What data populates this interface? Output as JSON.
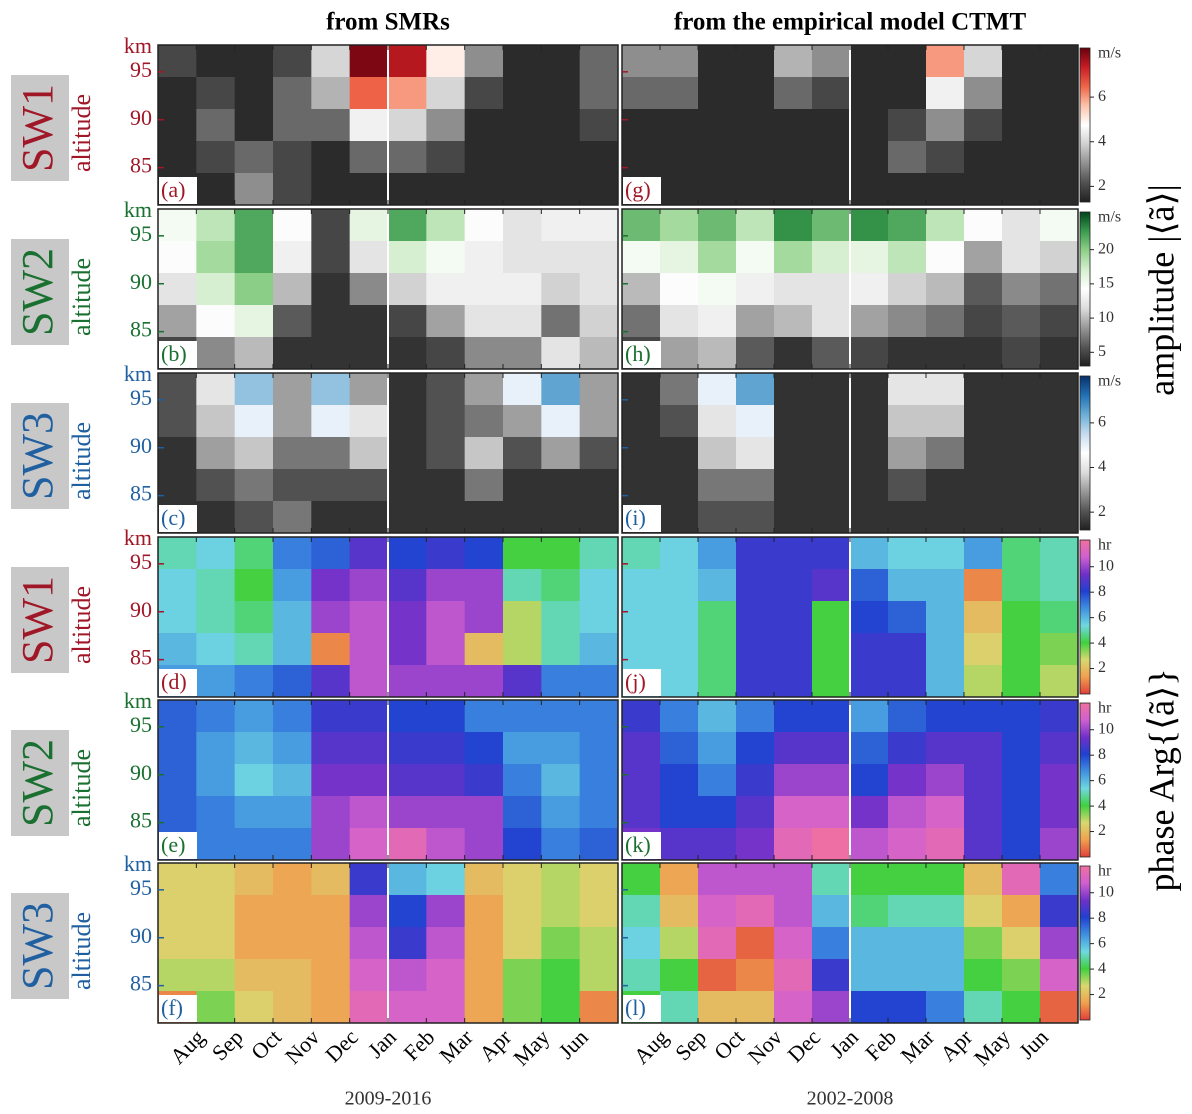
{
  "figure": {
    "left_title": "from SMRs",
    "right_title": "from the empirical model CTMT",
    "left_xlabel": "2009-2016",
    "right_xlabel": "2002-2008",
    "months": [
      "Aug",
      "Sep",
      "Oct",
      "Nov",
      "Dec",
      "Jan",
      "Feb",
      "Mar",
      "Apr",
      "May",
      "Jun"
    ],
    "amplitude_label": "amplitude |⟨ã⟩|",
    "phase_label": "phase Arg{⟨ã⟩}"
  },
  "chart_data": [
    {
      "type": "heatmap",
      "panel_label": "(a)",
      "row_label": "SW1",
      "ylabel": "altitude",
      "y_unit": "km",
      "label_color": "#a01828",
      "ylim": [
        81.1,
        97.8
      ],
      "yticks": [
        85,
        90,
        95
      ],
      "z": [
        [
          2,
          1.5,
          1.5,
          2,
          4,
          8,
          7.5,
          5,
          3,
          1.5,
          1.5,
          2.5
        ],
        [
          1.5,
          2,
          1.5,
          2.5,
          3.5,
          6.5,
          6,
          4,
          2,
          1.5,
          1.5,
          2.5
        ],
        [
          1.5,
          2.5,
          1.5,
          2.5,
          2.5,
          4.5,
          4,
          3,
          1.5,
          1.5,
          1.5,
          2
        ],
        [
          1.5,
          2,
          2.5,
          2,
          1.5,
          2.5,
          2.5,
          2,
          1.5,
          1.5,
          1.5,
          1.5
        ],
        [
          1.5,
          1.5,
          3,
          2,
          1.5,
          1.5,
          1.5,
          1.5,
          1.5,
          1.5,
          1.5,
          1.5
        ]
      ]
    },
    {
      "type": "heatmap",
      "panel_label": "(b)",
      "row_label": "SW2",
      "ylabel": "altitude",
      "y_unit": "km",
      "label_color": "#1a7030",
      "ylim": [
        81.1,
        97.8
      ],
      "yticks": [
        85,
        90,
        95
      ],
      "z": [
        [
          15,
          18,
          22,
          14,
          5,
          16,
          22,
          18,
          14,
          12,
          13,
          13
        ],
        [
          14,
          19,
          22,
          13,
          5,
          12,
          17,
          15,
          13,
          12,
          12,
          12
        ],
        [
          12,
          17,
          20,
          10,
          4,
          8,
          11,
          13,
          13,
          13,
          11,
          12
        ],
        [
          9,
          14,
          16,
          6,
          4,
          4,
          5,
          9,
          12,
          12,
          7,
          11
        ],
        [
          5,
          8,
          10,
          4,
          4,
          4,
          4,
          5,
          8,
          8,
          12,
          10
        ]
      ]
    },
    {
      "type": "heatmap",
      "panel_label": "(c)",
      "row_label": "SW3",
      "ylabel": "altitude",
      "y_unit": "km",
      "label_color": "#2060a0",
      "ylim": [
        81.1,
        97.8
      ],
      "yticks": [
        85,
        90,
        95
      ],
      "z": [
        [
          2,
          4,
          6,
          3,
          6,
          3,
          1.5,
          2,
          3,
          5,
          6.5,
          3
        ],
        [
          2,
          3.5,
          5,
          3,
          5,
          4,
          1.5,
          2,
          2.5,
          3,
          5,
          3
        ],
        [
          1.5,
          3,
          3.5,
          2.5,
          2.5,
          3.5,
          1.5,
          2,
          3.5,
          2,
          3,
          2
        ],
        [
          1.5,
          2,
          2.5,
          2,
          2,
          2,
          1.5,
          1.5,
          2.5,
          1.5,
          1.5,
          1.5
        ],
        [
          1.5,
          1.5,
          2,
          2.5,
          1.5,
          1.5,
          1.5,
          1.5,
          1.5,
          1.5,
          1.5,
          1.5
        ]
      ]
    },
    {
      "type": "heatmap",
      "panel_label": "(d)",
      "row_label": "SW1",
      "ylabel": "altitude",
      "y_unit": "km",
      "label_color": "#a01828",
      "ylim": [
        81.1,
        97.8
      ],
      "yticks": [
        85,
        90,
        95
      ],
      "z": [
        [
          5,
          5.5,
          4.5,
          7,
          7.5,
          9,
          8,
          8.5,
          8,
          4,
          4,
          5
        ],
        [
          5.5,
          5,
          4,
          6.5,
          9.5,
          10,
          9,
          10,
          10,
          5,
          4.5,
          5.5
        ],
        [
          5.5,
          5,
          4.5,
          6,
          10,
          10.5,
          9.5,
          10.5,
          10,
          3,
          5,
          5.5
        ],
        [
          6,
          5.5,
          5,
          6,
          1,
          10.5,
          9.5,
          10.5,
          2,
          3,
          5,
          6
        ],
        [
          6.5,
          6.5,
          7,
          7.5,
          9,
          10.5,
          10,
          10,
          10,
          9,
          7,
          7
        ]
      ]
    },
    {
      "type": "heatmap",
      "panel_label": "(e)",
      "row_label": "SW2",
      "ylabel": "altitude",
      "y_unit": "km",
      "label_color": "#1a7030",
      "ylim": [
        81.1,
        97.8
      ],
      "yticks": [
        85,
        90,
        95
      ],
      "z": [
        [
          7.5,
          7,
          6.5,
          7,
          8.5,
          8.5,
          8,
          8,
          7,
          7,
          7,
          7
        ],
        [
          7.5,
          6.5,
          6,
          6.5,
          9,
          9,
          8.5,
          8.5,
          8,
          6.5,
          6.5,
          7
        ],
        [
          7.5,
          6.5,
          5.5,
          6,
          9.5,
          9.5,
          9,
          9,
          8.5,
          7,
          6,
          7
        ],
        [
          7.5,
          7,
          6.5,
          6.5,
          10,
          10.5,
          10,
          10,
          10,
          7.5,
          6.5,
          7
        ],
        [
          7.5,
          7,
          7,
          7,
          10,
          11,
          11.5,
          10.5,
          10,
          8,
          7,
          7.5
        ]
      ]
    },
    {
      "type": "heatmap",
      "panel_label": "(f)",
      "row_label": "SW3",
      "ylabel": "altitude",
      "y_unit": "km",
      "label_color": "#2060a0",
      "ylim": [
        81.1,
        97.8
      ],
      "yticks": [
        85,
        90,
        95
      ],
      "z": [
        [
          2.5,
          2.5,
          2,
          1.5,
          2,
          8.5,
          6,
          5.5,
          2,
          2.5,
          3,
          2.5
        ],
        [
          2.5,
          2.5,
          1.5,
          1.5,
          1.5,
          10,
          8,
          10,
          1.5,
          2.5,
          3,
          2.5
        ],
        [
          2.5,
          2.5,
          1.5,
          1.5,
          1.5,
          10.5,
          8.5,
          10.5,
          1.5,
          2.5,
          3.5,
          3
        ],
        [
          3,
          3,
          2,
          2,
          1.5,
          11,
          10.5,
          11,
          1.5,
          3.5,
          4,
          3
        ],
        [
          1,
          3.5,
          2.5,
          2,
          1.5,
          11.5,
          11,
          11,
          1.5,
          3.5,
          4,
          1
        ]
      ]
    },
    {
      "type": "heatmap",
      "panel_label": "(g)",
      "label_color": "#a01828",
      "ylim": [
        81.1,
        97.8
      ],
      "yticks": [
        85,
        90,
        95
      ],
      "clim": [
        1.3,
        8.2
      ],
      "cticks": [
        2,
        4,
        6
      ],
      "cunit": "m/s",
      "colormap": [
        "#202020",
        "#505050",
        "#909090",
        "#d0d0d0",
        "#ffffff",
        "#fbc4ab",
        "#ef6548",
        "#c81d25",
        "#67000d"
      ],
      "z": [
        [
          3,
          3,
          1.5,
          1.5,
          3.5,
          3,
          1.5,
          1.5,
          6,
          4,
          1.5,
          1.5
        ],
        [
          2.5,
          2.5,
          1.5,
          1.5,
          2.5,
          2,
          1.5,
          1.5,
          4.5,
          3,
          1.5,
          1.5
        ],
        [
          1.5,
          1.5,
          1.5,
          1.5,
          1.5,
          1.5,
          1.5,
          2,
          3,
          2,
          1.5,
          1.5
        ],
        [
          1.5,
          1.5,
          1.5,
          1.5,
          1.5,
          1.5,
          1.5,
          2.5,
          2,
          1.5,
          1.5,
          1.5
        ],
        [
          1.5,
          1.5,
          1.5,
          1.5,
          1.5,
          1.5,
          1.5,
          1.5,
          1.5,
          1.5,
          1.5,
          1.5
        ]
      ]
    },
    {
      "type": "heatmap",
      "panel_label": "(h)",
      "label_color": "#1a7030",
      "ylim": [
        81.1,
        97.8
      ],
      "yticks": [
        85,
        90,
        95
      ],
      "clim": [
        3,
        25.5
      ],
      "cticks": [
        5,
        10,
        15,
        20
      ],
      "cunit": "m/s",
      "colormap": [
        "#202020",
        "#555555",
        "#999999",
        "#dddddd",
        "#ffffff",
        "#d5efcf",
        "#8fd08a",
        "#3a9b4e",
        "#00441b"
      ],
      "z": [
        [
          21,
          19,
          21,
          18,
          23,
          21,
          23,
          22,
          18,
          14,
          12,
          15
        ],
        [
          15,
          16,
          19,
          15,
          19,
          17,
          16,
          18,
          14,
          9,
          12,
          11
        ],
        [
          10,
          14,
          15,
          13,
          12,
          12,
          13,
          11,
          10,
          6,
          8,
          7
        ],
        [
          7,
          12,
          13,
          9,
          10,
          12,
          9,
          8,
          7,
          5,
          6,
          5
        ],
        [
          5,
          9,
          10,
          6,
          4,
          6,
          5,
          4,
          4,
          4,
          5,
          4
        ]
      ]
    },
    {
      "type": "heatmap",
      "panel_label": "(i)",
      "label_color": "#2060a0",
      "ylim": [
        81.1,
        97.8
      ],
      "yticks": [
        85,
        90,
        95
      ],
      "clim": [
        1.2,
        8.1
      ],
      "cticks": [
        2,
        4,
        6
      ],
      "cunit": "m/s",
      "colormap": [
        "#202020",
        "#555555",
        "#999999",
        "#dddddd",
        "#ffffff",
        "#c6dbef",
        "#6baed6",
        "#2171b5",
        "#08306b"
      ],
      "z": [
        [
          1.5,
          2.5,
          5,
          6.5,
          1.5,
          1.5,
          1.5,
          4,
          4,
          1.5,
          1.5,
          1.5
        ],
        [
          1.5,
          2,
          4,
          5,
          1.5,
          1.5,
          1.5,
          3.5,
          3.5,
          1.5,
          1.5,
          1.5
        ],
        [
          1.5,
          1.5,
          3.5,
          4,
          1.5,
          1.5,
          1.5,
          3,
          2.5,
          1.5,
          1.5,
          1.5
        ],
        [
          1.5,
          1.5,
          2.5,
          2.5,
          1.5,
          1.5,
          1.5,
          2,
          1.5,
          1.5,
          1.5,
          1.5
        ],
        [
          1.5,
          1.5,
          2,
          2,
          1.5,
          1.5,
          1.5,
          1.5,
          1.5,
          1.5,
          1.5,
          1.5
        ]
      ]
    },
    {
      "type": "heatmap",
      "panel_label": "(j)",
      "label_color": "#a01828",
      "ylim": [
        81.1,
        97.8
      ],
      "yticks": [
        85,
        90,
        95
      ],
      "clim": [
        0,
        12.1
      ],
      "cticks": [
        2,
        4,
        6,
        8,
        10
      ],
      "cunit": "hr",
      "colormap": [
        "#e0403a",
        "#f0a050",
        "#d8d870",
        "#40d040",
        "#70d8e0",
        "#4090e0",
        "#2040d0",
        "#7030c8",
        "#d060d0",
        "#f070a0"
      ],
      "z": [
        [
          5,
          5.5,
          6.5,
          8.5,
          8.5,
          8.5,
          6,
          5.5,
          5.5,
          6.5,
          4.5,
          5
        ],
        [
          5.5,
          5.5,
          6,
          8.5,
          8.5,
          9,
          7.5,
          6,
          6,
          1,
          4.5,
          5
        ],
        [
          5.5,
          5.5,
          4.5,
          8.5,
          8.5,
          4,
          8,
          7.5,
          6,
          2,
          4,
          4.5
        ],
        [
          5.5,
          5.5,
          4.5,
          8.5,
          8.5,
          4,
          8.5,
          8.5,
          6,
          2.5,
          4,
          3.5
        ],
        [
          5.5,
          5.5,
          4.5,
          8.5,
          8.5,
          4,
          8.5,
          8.5,
          6,
          3,
          4,
          3
        ]
      ]
    },
    {
      "type": "heatmap",
      "panel_label": "(k)",
      "label_color": "#1a7030",
      "ylim": [
        81.1,
        97.8
      ],
      "yticks": [
        85,
        90,
        95
      ],
      "clim": [
        0,
        12.1
      ],
      "cticks": [
        2,
        4,
        6,
        8,
        10
      ],
      "cunit": "hr",
      "colormap": [
        "#e0403a",
        "#f0a050",
        "#d8d870",
        "#40d040",
        "#70d8e0",
        "#4090e0",
        "#2040d0",
        "#7030c8",
        "#d060d0",
        "#f070a0"
      ],
      "z": [
        [
          8.5,
          7,
          6,
          7,
          8,
          8,
          6.5,
          7.5,
          8,
          8,
          8,
          8.5
        ],
        [
          9,
          7.5,
          6.5,
          8,
          9,
          9,
          7.5,
          8.5,
          9,
          9,
          8,
          9
        ],
        [
          9,
          8,
          7,
          8.5,
          10,
          10,
          8,
          9.5,
          10,
          9,
          8,
          9.5
        ],
        [
          9,
          8,
          8,
          9,
          11,
          11,
          9.5,
          10.5,
          11,
          9,
          8,
          9.5
        ],
        [
          9.5,
          9,
          9,
          9.5,
          11.5,
          12,
          10.5,
          11,
          11.5,
          9,
          8,
          10
        ]
      ]
    },
    {
      "type": "heatmap",
      "panel_label": "(l)",
      "label_color": "#2060a0",
      "ylim": [
        81.1,
        97.8
      ],
      "yticks": [
        85,
        90,
        95
      ],
      "clim": [
        0,
        12.1
      ],
      "cticks": [
        2,
        4,
        6,
        8,
        10
      ],
      "cunit": "hr",
      "colormap": [
        "#e0403a",
        "#f0a050",
        "#d8d870",
        "#40d040",
        "#70d8e0",
        "#4090e0",
        "#2040d0",
        "#7030c8",
        "#d060d0",
        "#f070a0"
      ],
      "z": [
        [
          4,
          1.5,
          10.5,
          10.5,
          10.5,
          5,
          4,
          4,
          4,
          2,
          11.5,
          7
        ],
        [
          5,
          2,
          11,
          11.5,
          10.5,
          6,
          4.5,
          5,
          5,
          2.5,
          1.5,
          8.5
        ],
        [
          5.5,
          3,
          11.5,
          0.5,
          11,
          7,
          6,
          6,
          6,
          3.5,
          2.5,
          10
        ],
        [
          5,
          4,
          0.5,
          1,
          11.5,
          8.5,
          6,
          6,
          6,
          4,
          3.5,
          11
        ],
        [
          4,
          5,
          2,
          2,
          11,
          10,
          8,
          8,
          7,
          5,
          4,
          0.5
        ]
      ]
    }
  ]
}
